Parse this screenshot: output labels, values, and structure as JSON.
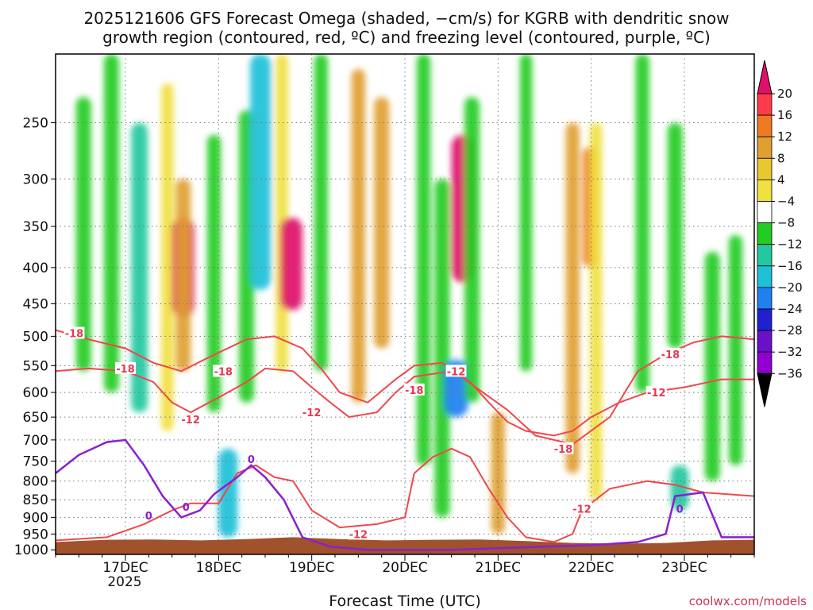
{
  "chart_data": {
    "type": "heatmap",
    "title_line1": "2025121606 GFS Forecast Omega (shaded, −cm/s) for KGRB with dendritic snow",
    "title_line2": "growth region (contoured, red, ºC) and freezing level (contoured, purple, ºC)",
    "xlabel": "Forecast Time (UTC)",
    "x_ticks": [
      "17DEC",
      "18DEC",
      "19DEC",
      "20DEC",
      "21DEC",
      "22DEC",
      "23DEC"
    ],
    "x_year_label": "2025",
    "xlim_days": [
      16.25,
      23.75
    ],
    "y_unit": "hPa",
    "y_ticks": [
      "250",
      "300",
      "350",
      "400",
      "450",
      "500",
      "550",
      "600",
      "650",
      "700",
      "750",
      "800",
      "850",
      "900",
      "950",
      "1000"
    ],
    "ylim": [
      200,
      1015
    ],
    "colorbar_levels": [
      "20",
      "16",
      "12",
      "8",
      "4",
      "−4",
      "−8",
      "−12",
      "−16",
      "−20",
      "−24",
      "−28",
      "−32",
      "−36"
    ],
    "colorbar_colors": [
      "#ff3a4a",
      "#f07a20",
      "#e0a030",
      "#e8c830",
      "#f0e040",
      "#ffffff",
      "#22cc22",
      "#22c8a0",
      "#20c0d8",
      "#2080f0",
      "#2020d0",
      "#6a10c8",
      "#9000d0",
      "#a0a0a0"
    ],
    "colorbar_top_color": "#e0106a",
    "colorbar_bottom_color": "#000000",
    "contour_labels_red": [
      "-18",
      "-18",
      "-12",
      "-18",
      "-12",
      "-18",
      "-12",
      "-18",
      "-12",
      "-12",
      "-18",
      "-12"
    ],
    "contour_labels_purple": [
      "0",
      "0",
      "0",
      "0"
    ],
    "omega_features": [
      {
        "day": 16.55,
        "p0": 230,
        "p1": 560,
        "val": -10
      },
      {
        "day": 16.85,
        "p0": 200,
        "p1": 600,
        "val": -10
      },
      {
        "day": 17.15,
        "p0": 250,
        "p1": 640,
        "val": -12
      },
      {
        "day": 17.45,
        "p0": 220,
        "p1": 680,
        "val": 6
      },
      {
        "day": 17.62,
        "p0": 340,
        "p1": 470,
        "val": 20
      },
      {
        "day": 17.62,
        "p0": 300,
        "p1": 560,
        "val": 10
      },
      {
        "day": 17.95,
        "p0": 260,
        "p1": 640,
        "val": -8
      },
      {
        "day": 18.1,
        "p0": 720,
        "p1": 960,
        "val": -16
      },
      {
        "day": 18.3,
        "p0": 240,
        "p1": 620,
        "val": -10
      },
      {
        "day": 18.45,
        "p0": 200,
        "p1": 430,
        "val": -18
      },
      {
        "day": 18.68,
        "p0": 200,
        "p1": 560,
        "val": 6
      },
      {
        "day": 18.78,
        "p0": 340,
        "p1": 460,
        "val": 20
      },
      {
        "day": 19.1,
        "p0": 200,
        "p1": 560,
        "val": -8
      },
      {
        "day": 19.5,
        "p0": 210,
        "p1": 620,
        "val": 8
      },
      {
        "day": 19.75,
        "p0": 230,
        "p1": 520,
        "val": 10
      },
      {
        "day": 20.2,
        "p0": 200,
        "p1": 760,
        "val": -8
      },
      {
        "day": 20.4,
        "p0": 300,
        "p1": 900,
        "val": -10
      },
      {
        "day": 20.55,
        "p0": 540,
        "p1": 650,
        "val": -22
      },
      {
        "day": 20.62,
        "p0": 260,
        "p1": 420,
        "val": 20
      },
      {
        "day": 20.72,
        "p0": 230,
        "p1": 620,
        "val": -10
      },
      {
        "day": 21.0,
        "p0": 640,
        "p1": 950,
        "val": 8
      },
      {
        "day": 21.3,
        "p0": 200,
        "p1": 560,
        "val": -6
      },
      {
        "day": 21.8,
        "p0": 250,
        "p1": 780,
        "val": 8
      },
      {
        "day": 22.0,
        "p0": 270,
        "p1": 400,
        "val": 12
      },
      {
        "day": 22.05,
        "p0": 250,
        "p1": 850,
        "val": 6
      },
      {
        "day": 22.55,
        "p0": 200,
        "p1": 600,
        "val": -8
      },
      {
        "day": 22.9,
        "p0": 250,
        "p1": 520,
        "val": -10
      },
      {
        "day": 22.95,
        "p0": 760,
        "p1": 880,
        "val": -14
      },
      {
        "day": 23.3,
        "p0": 380,
        "p1": 800,
        "val": -10
      },
      {
        "day": 23.55,
        "p0": 360,
        "p1": 760,
        "val": -8
      }
    ],
    "dgz_minus12_top": [
      [
        16.25,
        560
      ],
      [
        16.6,
        555
      ],
      [
        17.0,
        560
      ],
      [
        17.3,
        580
      ],
      [
        17.5,
        620
      ],
      [
        17.7,
        640
      ],
      [
        18.0,
        610
      ],
      [
        18.3,
        580
      ],
      [
        18.5,
        555
      ],
      [
        18.8,
        560
      ],
      [
        19.0,
        590
      ],
      [
        19.2,
        620
      ],
      [
        19.4,
        650
      ],
      [
        19.7,
        640
      ],
      [
        19.9,
        600
      ],
      [
        20.1,
        570
      ],
      [
        20.5,
        560
      ],
      [
        20.7,
        580
      ],
      [
        20.9,
        620
      ],
      [
        21.1,
        660
      ],
      [
        21.3,
        680
      ],
      [
        21.6,
        690
      ],
      [
        21.8,
        680
      ],
      [
        22.0,
        650
      ],
      [
        22.3,
        620
      ],
      [
        22.6,
        600
      ],
      [
        23.0,
        590
      ],
      [
        23.4,
        575
      ],
      [
        23.75,
        575
      ]
    ],
    "dgz_minus18_top": [
      [
        16.25,
        490
      ],
      [
        16.6,
        505
      ],
      [
        17.0,
        520
      ],
      [
        17.3,
        545
      ],
      [
        17.6,
        560
      ],
      [
        17.9,
        535
      ],
      [
        18.3,
        505
      ],
      [
        18.6,
        500
      ],
      [
        18.9,
        520
      ],
      [
        19.1,
        555
      ],
      [
        19.3,
        600
      ],
      [
        19.6,
        620
      ],
      [
        19.9,
        575
      ],
      [
        20.1,
        550
      ],
      [
        20.4,
        545
      ],
      [
        20.8,
        595
      ],
      [
        21.1,
        635
      ],
      [
        21.4,
        690
      ],
      [
        21.8,
        710
      ],
      [
        22.2,
        650
      ],
      [
        22.5,
        560
      ],
      [
        22.8,
        530
      ],
      [
        23.1,
        510
      ],
      [
        23.4,
        500
      ],
      [
        23.75,
        505
      ]
    ],
    "dgz_lower": [
      [
        16.25,
        970
      ],
      [
        16.8,
        960
      ],
      [
        17.2,
        920
      ],
      [
        17.5,
        880
      ],
      [
        17.7,
        860
      ],
      [
        18.0,
        860
      ],
      [
        18.2,
        780
      ],
      [
        18.4,
        760
      ],
      [
        18.6,
        790
      ],
      [
        18.8,
        800
      ],
      [
        19.0,
        880
      ],
      [
        19.3,
        930
      ],
      [
        19.7,
        920
      ],
      [
        20.0,
        900
      ],
      [
        20.1,
        780
      ],
      [
        20.3,
        740
      ],
      [
        20.5,
        720
      ],
      [
        20.7,
        740
      ],
      [
        20.9,
        820
      ],
      [
        21.1,
        900
      ],
      [
        21.3,
        960
      ],
      [
        21.6,
        975
      ],
      [
        21.8,
        950
      ],
      [
        21.9,
        880
      ],
      [
        22.2,
        820
      ],
      [
        22.6,
        800
      ],
      [
        22.9,
        810
      ],
      [
        23.2,
        830
      ],
      [
        23.75,
        840
      ]
    ],
    "freezing_level": [
      [
        16.25,
        780
      ],
      [
        16.5,
        735
      ],
      [
        16.8,
        705
      ],
      [
        17.0,
        700
      ],
      [
        17.2,
        760
      ],
      [
        17.4,
        840
      ],
      [
        17.6,
        900
      ],
      [
        17.8,
        880
      ],
      [
        17.95,
        835
      ],
      [
        18.2,
        790
      ],
      [
        18.35,
        760
      ],
      [
        18.5,
        790
      ],
      [
        18.7,
        850
      ],
      [
        18.9,
        960
      ],
      [
        19.2,
        990
      ],
      [
        19.6,
        1000
      ],
      [
        20.0,
        1000
      ],
      [
        20.5,
        1000
      ],
      [
        21.0,
        995
      ],
      [
        21.5,
        990
      ],
      [
        22.0,
        985
      ],
      [
        22.5,
        975
      ],
      [
        22.8,
        950
      ],
      [
        22.9,
        840
      ],
      [
        23.2,
        830
      ],
      [
        23.4,
        960
      ],
      [
        23.75,
        960
      ]
    ],
    "ground_surface": [
      [
        16.25,
        975
      ],
      [
        16.8,
        968
      ],
      [
        17.3,
        967
      ],
      [
        17.8,
        970
      ],
      [
        18.3,
        966
      ],
      [
        18.8,
        960
      ],
      [
        19.3,
        966
      ],
      [
        19.8,
        970
      ],
      [
        20.3,
        968
      ],
      [
        20.8,
        967
      ],
      [
        21.3,
        972
      ],
      [
        21.8,
        978
      ],
      [
        22.3,
        980
      ],
      [
        22.8,
        978
      ],
      [
        23.3,
        970
      ],
      [
        23.75,
        968
      ]
    ]
  },
  "watermark": "coolwx.com/models"
}
